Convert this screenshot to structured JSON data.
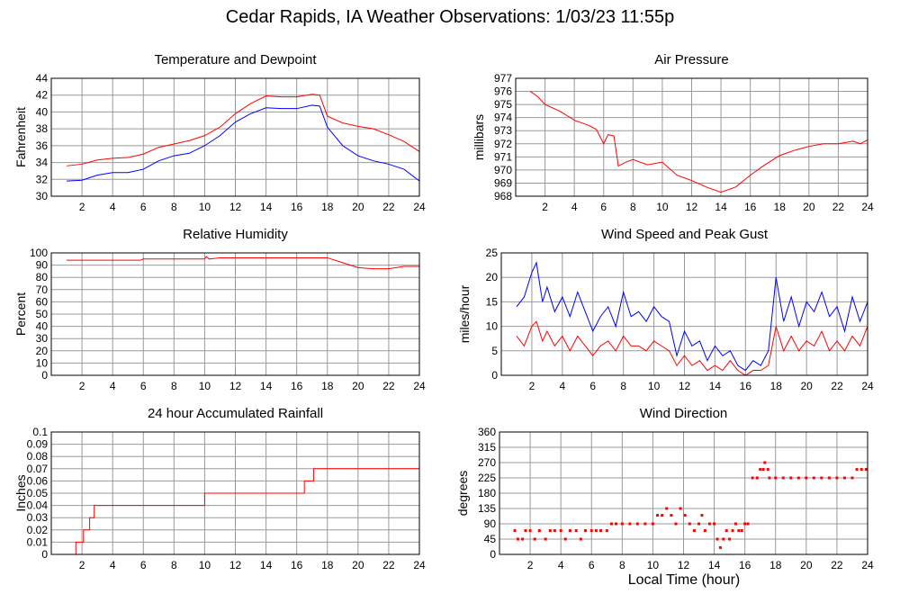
{
  "page": {
    "title": "Cedar Rapids, IA Weather Observations: 1/03/23 11:55p",
    "xaxis_title": "Local Time (hour)"
  },
  "colors": {
    "series_red": "#ff0000",
    "series_blue": "#0000ff",
    "grid": "#999999",
    "frame": "#000000"
  },
  "chart_data": [
    {
      "id": "temp",
      "type": "line",
      "title": "Temperature and Dewpoint",
      "xlabel": "",
      "ylabel": "Fahrenheit",
      "xlim": [
        0,
        24
      ],
      "xticks": [
        2,
        4,
        6,
        8,
        10,
        12,
        14,
        16,
        18,
        20,
        22,
        24
      ],
      "ylim": [
        30,
        44
      ],
      "yticks": [
        30,
        32,
        34,
        36,
        38,
        40,
        42,
        44
      ],
      "grid": true,
      "series": [
        {
          "color": "red",
          "x": [
            1,
            2,
            3,
            4,
            5,
            6,
            7,
            8,
            9,
            10,
            11,
            12,
            13,
            14,
            15,
            16,
            17,
            17.5,
            18,
            19,
            20,
            21,
            22,
            23,
            24
          ],
          "values": [
            33.6,
            33.8,
            34.3,
            34.5,
            34.6,
            35,
            35.8,
            36.2,
            36.6,
            37.2,
            38.2,
            39.8,
            41,
            41.9,
            41.8,
            41.8,
            42.1,
            42,
            39.5,
            38.7,
            38.3,
            38,
            37.3,
            36.5,
            35.3
          ]
        },
        {
          "color": "blue",
          "x": [
            1,
            2,
            3,
            4,
            5,
            6,
            7,
            8,
            9,
            10,
            11,
            12,
            13,
            14,
            15,
            16,
            17,
            17.5,
            18,
            19,
            20,
            21,
            22,
            23,
            24
          ],
          "values": [
            31.8,
            31.9,
            32.5,
            32.8,
            32.8,
            33.2,
            34.2,
            34.8,
            35.1,
            36,
            37.2,
            38.8,
            39.8,
            40.5,
            40.4,
            40.4,
            40.8,
            40.7,
            38.2,
            36,
            34.8,
            34.2,
            33.8,
            33.2,
            31.8
          ]
        }
      ]
    },
    {
      "id": "pressure",
      "type": "line",
      "title": "Air Pressure",
      "xlabel": "",
      "ylabel": "millibars",
      "xlim": [
        0,
        24
      ],
      "xticks": [
        2,
        4,
        6,
        8,
        10,
        12,
        14,
        16,
        18,
        20,
        22,
        24
      ],
      "ylim": [
        968,
        977
      ],
      "yticks": [
        968,
        969,
        970,
        971,
        972,
        973,
        974,
        975,
        976,
        977
      ],
      "grid": true,
      "series": [
        {
          "color": "red",
          "x": [
            1,
            1.5,
            2,
            3,
            4,
            5,
            5.5,
            6,
            6.3,
            6.7,
            7,
            7.5,
            8,
            9,
            10,
            11,
            12,
            13,
            14,
            15,
            16,
            17,
            18,
            19,
            20,
            21,
            22,
            23,
            23.5,
            24
          ],
          "values": [
            976,
            975.6,
            975,
            974.5,
            973.8,
            973.4,
            973.1,
            972,
            972.7,
            972.6,
            970.3,
            970.6,
            970.8,
            970.4,
            970.6,
            969.6,
            969.2,
            968.7,
            968.3,
            968.7,
            969.6,
            970.4,
            971.1,
            971.5,
            971.8,
            972,
            972,
            972.2,
            972,
            972.3
          ]
        }
      ]
    },
    {
      "id": "humidity",
      "type": "line",
      "title": "Relative Humidity",
      "xlabel": "",
      "ylabel": "Percent",
      "xlim": [
        0,
        24
      ],
      "xticks": [
        2,
        4,
        6,
        8,
        10,
        12,
        14,
        16,
        18,
        20,
        22,
        24
      ],
      "ylim": [
        0,
        100
      ],
      "yticks": [
        0,
        10,
        20,
        30,
        40,
        50,
        60,
        70,
        80,
        90,
        100
      ],
      "grid": true,
      "series": [
        {
          "color": "red",
          "x": [
            1,
            5.8,
            6,
            10,
            10.1,
            10.3,
            11,
            14,
            17,
            18,
            19,
            20,
            21,
            22,
            23,
            24
          ],
          "values": [
            94,
            94,
            95,
            95,
            97,
            95,
            96,
            96,
            96,
            96,
            92,
            88,
            87,
            87,
            89,
            89
          ]
        }
      ]
    },
    {
      "id": "wind",
      "type": "line",
      "title": "Wind Speed and Peak Gust",
      "xlabel": "",
      "ylabel": "miles/hour",
      "xlim": [
        0,
        24
      ],
      "xticks": [
        2,
        4,
        6,
        8,
        10,
        12,
        14,
        16,
        18,
        20,
        22,
        24
      ],
      "ylim": [
        0,
        25
      ],
      "yticks": [
        0,
        5,
        10,
        15,
        20,
        25
      ],
      "grid": true,
      "series": [
        {
          "color": "blue",
          "x": [
            1,
            1.5,
            2,
            2.3,
            2.7,
            3,
            3.5,
            4,
            4.5,
            5,
            5.5,
            6,
            6.5,
            7,
            7.5,
            8,
            8.5,
            9,
            9.5,
            10,
            10.5,
            11,
            11.5,
            12,
            12.5,
            13,
            13.5,
            14,
            14.5,
            15,
            15.5,
            16,
            16.5,
            17,
            17.5,
            18,
            18.5,
            19,
            19.5,
            20,
            20.5,
            21,
            21.5,
            22,
            22.5,
            23,
            23.5,
            24
          ],
          "values": [
            14,
            16,
            21,
            23,
            15,
            18,
            13,
            16,
            12,
            17,
            13,
            9,
            12,
            14,
            10,
            17,
            12,
            13,
            11,
            14,
            12,
            11,
            4,
            9,
            6,
            7,
            3,
            6,
            4,
            5,
            2,
            1,
            3,
            2,
            5,
            20,
            11,
            16,
            10,
            15,
            13,
            17,
            12,
            14,
            9,
            16,
            11,
            15
          ]
        },
        {
          "color": "red",
          "x": [
            1,
            1.5,
            2,
            2.3,
            2.7,
            3,
            3.5,
            4,
            4.5,
            5,
            5.5,
            6,
            6.5,
            7,
            7.5,
            8,
            8.5,
            9,
            9.5,
            10,
            10.5,
            11,
            11.5,
            12,
            12.5,
            13,
            13.5,
            14,
            14.5,
            15,
            15.5,
            16,
            16.5,
            17,
            17.5,
            18,
            18.5,
            19,
            19.5,
            20,
            20.5,
            21,
            21.5,
            22,
            22.5,
            23,
            23.5,
            24
          ],
          "values": [
            8,
            6,
            10,
            11,
            7,
            9,
            6,
            8,
            5,
            8,
            6,
            4,
            6,
            7,
            5,
            8,
            6,
            6,
            5,
            7,
            6,
            5,
            2,
            4,
            2,
            3,
            1,
            2,
            1,
            3,
            1,
            0,
            1,
            1,
            2,
            10,
            5,
            8,
            5,
            7,
            6,
            9,
            5,
            7,
            5,
            8,
            6,
            10
          ]
        }
      ]
    },
    {
      "id": "rain",
      "type": "line",
      "title": "24 hour Accumulated Rainfall",
      "xlabel": "",
      "ylabel": "Inches",
      "xlim": [
        0,
        24
      ],
      "xticks": [
        2,
        4,
        6,
        8,
        10,
        12,
        14,
        16,
        18,
        20,
        22,
        24
      ],
      "ylim": [
        0,
        0.1
      ],
      "yticks": [
        0.0,
        0.01,
        0.02,
        0.03,
        0.04,
        0.05,
        0.06,
        0.07,
        0.08,
        0.09,
        0.1
      ],
      "grid": true,
      "series": [
        {
          "color": "red",
          "step": true,
          "x": [
            1,
            1.6,
            2.1,
            2.5,
            2.8,
            10,
            16.5,
            16.8,
            17.1,
            24
          ],
          "values": [
            0,
            0.01,
            0.02,
            0.03,
            0.04,
            0.05,
            0.06,
            0.06,
            0.07,
            0.07
          ]
        }
      ]
    },
    {
      "id": "direction",
      "type": "scatter",
      "title": "Wind Direction",
      "xlabel": "Local Time (hour)",
      "ylabel": "degrees",
      "xlim": [
        0,
        24
      ],
      "xticks": [
        2,
        4,
        6,
        8,
        10,
        12,
        14,
        16,
        18,
        20,
        22,
        24
      ],
      "ylim": [
        0,
        360
      ],
      "yticks": [
        0,
        45,
        90,
        135,
        180,
        225,
        270,
        315,
        360
      ],
      "grid": true,
      "series": [
        {
          "color": "red",
          "points": [
            [
              1.0,
              70
            ],
            [
              1.2,
              45
            ],
            [
              1.5,
              45
            ],
            [
              1.7,
              70
            ],
            [
              2.0,
              70
            ],
            [
              2.3,
              45
            ],
            [
              2.6,
              70
            ],
            [
              3.0,
              45
            ],
            [
              3.3,
              70
            ],
            [
              3.6,
              70
            ],
            [
              4.0,
              70
            ],
            [
              4.3,
              45
            ],
            [
              4.6,
              70
            ],
            [
              5.0,
              70
            ],
            [
              5.3,
              45
            ],
            [
              5.6,
              70
            ],
            [
              6.0,
              70
            ],
            [
              6.3,
              70
            ],
            [
              6.6,
              70
            ],
            [
              7.0,
              70
            ],
            [
              7.3,
              90
            ],
            [
              7.6,
              90
            ],
            [
              8.0,
              90
            ],
            [
              8.5,
              90
            ],
            [
              9.0,
              90
            ],
            [
              9.5,
              90
            ],
            [
              10.0,
              90
            ],
            [
              10.3,
              115
            ],
            [
              10.6,
              115
            ],
            [
              10.9,
              135
            ],
            [
              11.2,
              115
            ],
            [
              11.5,
              90
            ],
            [
              11.8,
              135
            ],
            [
              12.1,
              115
            ],
            [
              12.4,
              90
            ],
            [
              12.7,
              70
            ],
            [
              13.0,
              90
            ],
            [
              13.2,
              115
            ],
            [
              13.4,
              70
            ],
            [
              13.7,
              90
            ],
            [
              14.0,
              90
            ],
            [
              14.2,
              45
            ],
            [
              14.4,
              20
            ],
            [
              14.6,
              45
            ],
            [
              14.8,
              70
            ],
            [
              15.0,
              45
            ],
            [
              15.2,
              70
            ],
            [
              15.4,
              90
            ],
            [
              15.6,
              70
            ],
            [
              15.8,
              70
            ],
            [
              16.0,
              90
            ],
            [
              16.2,
              90
            ],
            [
              16.5,
              225
            ],
            [
              16.8,
              225
            ],
            [
              17.0,
              250
            ],
            [
              17.2,
              250
            ],
            [
              17.3,
              270
            ],
            [
              17.5,
              250
            ],
            [
              17.6,
              225
            ],
            [
              18,
              225
            ],
            [
              18.5,
              225
            ],
            [
              19,
              225
            ],
            [
              19.5,
              225
            ],
            [
              20,
              225
            ],
            [
              20.5,
              225
            ],
            [
              21,
              225
            ],
            [
              21.5,
              225
            ],
            [
              22,
              225
            ],
            [
              22.5,
              225
            ],
            [
              23,
              225
            ],
            [
              23.3,
              250
            ],
            [
              23.6,
              250
            ],
            [
              23.9,
              250
            ]
          ]
        }
      ]
    }
  ]
}
